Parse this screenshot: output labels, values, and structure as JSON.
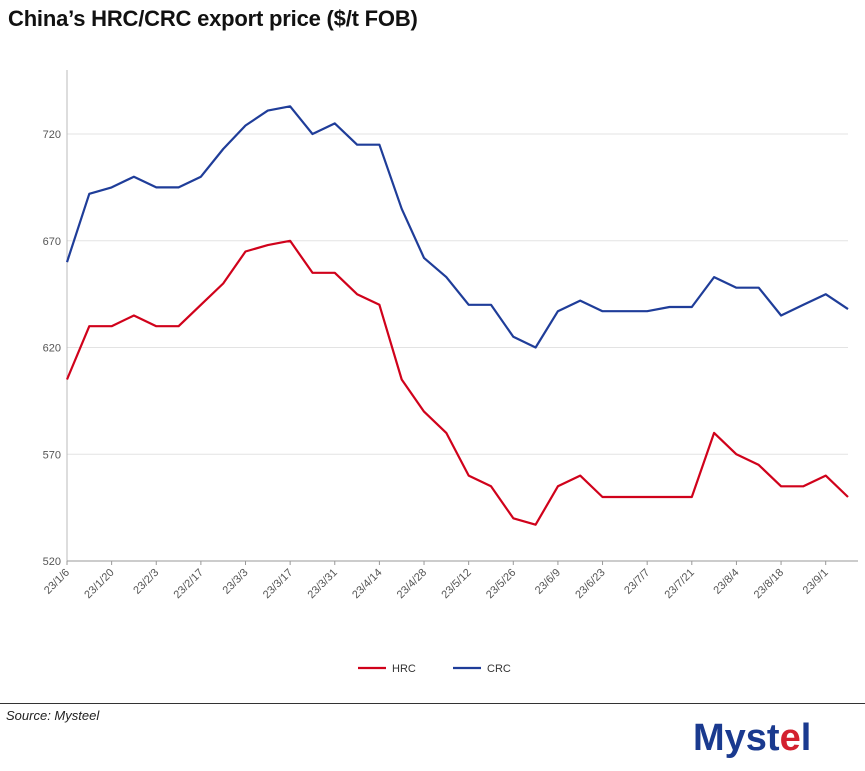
{
  "header": {
    "title": "China’s HRC/CRC export price ($/t FOB)"
  },
  "footer": {
    "source": "Source: Mysteel"
  },
  "logo": {
    "text_part1": "Myst",
    "text_part2": "e",
    "text_part3": "l",
    "colors": {
      "blue": "#1a3a8f",
      "red": "#d3202f"
    }
  },
  "chart_data": {
    "type": "line",
    "title": "China’s HRC/CRC export price ($/t FOB)",
    "xlabel": "",
    "ylabel": "",
    "ylim": [
      520,
      750
    ],
    "yticks": [
      520,
      570,
      620,
      670,
      720
    ],
    "grid": "horizontal",
    "legend": "bottom-center",
    "x": [
      "23/1/6",
      "23/1/13",
      "23/1/20",
      "23/1/27",
      "23/2/3",
      "23/2/10",
      "23/2/17",
      "23/2/24",
      "23/3/3",
      "23/3/10",
      "23/3/17",
      "23/3/24",
      "23/3/31",
      "23/4/7",
      "23/4/14",
      "23/4/21",
      "23/4/28",
      "23/5/5",
      "23/5/12",
      "23/5/19",
      "23/5/26",
      "23/6/2",
      "23/6/9",
      "23/6/16",
      "23/6/23",
      "23/6/30",
      "23/7/7",
      "23/7/14",
      "23/7/21",
      "23/7/28",
      "23/8/4",
      "23/8/11",
      "23/8/18",
      "23/8/25",
      "23/9/1",
      "23/9/8"
    ],
    "xtick_labels": [
      "23/1/6",
      "23/1/20",
      "23/2/3",
      "23/2/17",
      "23/3/3",
      "23/3/17",
      "23/3/31",
      "23/4/14",
      "23/4/28",
      "23/5/12",
      "23/5/26",
      "23/6/9",
      "23/6/23",
      "23/7/7",
      "23/7/21",
      "23/8/4",
      "23/8/18",
      "23/9/1"
    ],
    "series": [
      {
        "name": "HRC",
        "color": "#d0021b",
        "values": [
          605,
          630,
          630,
          635,
          630,
          630,
          640,
          650,
          665,
          668,
          670,
          655,
          655,
          645,
          640,
          605,
          590,
          580,
          560,
          555,
          540,
          537,
          555,
          560,
          550,
          550,
          550,
          550,
          550,
          580,
          570,
          565,
          555,
          555,
          560,
          550
        ]
      },
      {
        "name": "CRC",
        "color": "#1f3d99",
        "values": [
          660,
          692,
          695,
          700,
          695,
          695,
          700,
          713,
          724,
          731,
          733,
          720,
          725,
          715,
          715,
          685,
          662,
          653,
          640,
          640,
          625,
          620,
          637,
          642,
          637,
          637,
          637,
          639,
          639,
          653,
          648,
          648,
          635,
          640,
          645,
          638
        ]
      }
    ]
  }
}
